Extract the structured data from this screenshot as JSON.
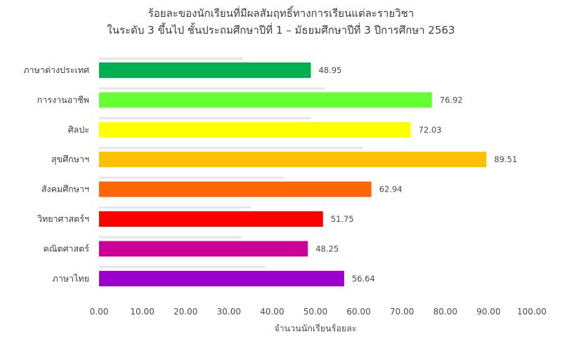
{
  "chart_data": {
    "type": "bar",
    "orientation": "horizontal",
    "title": "ร้อยละของนักเรียนที่มีผลสัมฤทธิ์ทางการเรียนแต่ละรายวิชา",
    "subtitle": "ในระดับ 3 ขึ้นไป ชั้นประถมศึกษาปีที่ 1 – มัธยมศึกษาปีที่ 3   ปีการศึกษา 2563",
    "categories": [
      "ภาษาต่างประเทศ",
      "การงานอาชีพ",
      "ศิลปะ",
      "สุขศึกษาฯ",
      "สังคมศึกษาฯ",
      "วิทยาศาสตร์ฯ",
      "คณิตศาสตร์",
      "ภาษาไทย"
    ],
    "values": [
      48.95,
      76.92,
      72.03,
      89.51,
      62.94,
      51.75,
      48.25,
      56.64
    ],
    "value_labels": [
      "48.95",
      "76.92",
      "72.03",
      "89.51",
      "62.94",
      "51.75",
      "48.25",
      "56.64"
    ],
    "colors": [
      "#00b050",
      "#66ff33",
      "#ffff00",
      "#ffc000",
      "#ff6600",
      "#ff0000",
      "#cc0099",
      "#9900cc"
    ],
    "xlabel": "จำนวนนักเรียนร้อยละ",
    "ylabel": "",
    "xlim": [
      0,
      100
    ],
    "x_ticks": [
      "0.00",
      "10.00",
      "20.00",
      "30.00",
      "40.00",
      "50.00",
      "60.00",
      "70.00",
      "80.00",
      "90.00",
      "100.00"
    ],
    "grid": false,
    "legend": "none"
  }
}
